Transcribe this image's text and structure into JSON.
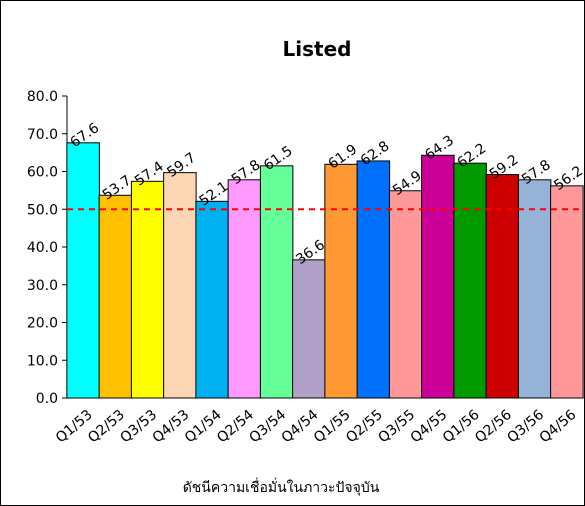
{
  "chart_data": {
    "type": "bar",
    "title": "Listed",
    "xlabel": "ดัชนีความเชื่อมั่นในภาวะปัจจุบัน",
    "ylabel": "",
    "ylim": [
      0,
      80
    ],
    "yticks": [
      "0.0",
      "10.0",
      "20.0",
      "30.0",
      "40.0",
      "50.0",
      "60.0",
      "70.0",
      "80.0"
    ],
    "categories": [
      "Q1/53",
      "Q2/53",
      "Q3/53",
      "Q4/53",
      "Q1/54",
      "Q2/54",
      "Q3/54",
      "Q4/54",
      "Q1/55",
      "Q2/55",
      "Q3/55",
      "Q4/55",
      "Q1/56",
      "Q2/56",
      "Q3/56",
      "Q4/56"
    ],
    "values": [
      67.6,
      53.7,
      57.4,
      59.7,
      52.1,
      57.8,
      61.5,
      36.6,
      61.9,
      62.8,
      54.9,
      64.3,
      62.2,
      59.2,
      57.8,
      56.2
    ],
    "labels": [
      "67.6",
      "53.7",
      "57.4",
      "59.7",
      "52.1",
      "57.8",
      "61.5",
      "36.6",
      "61.9",
      "62.8",
      "54.9",
      "64.3",
      "62.2",
      "59.2",
      "57.8",
      "56.2"
    ],
    "colors": [
      "#00FFFF",
      "#FFC000",
      "#FFFF00",
      "#FCD5B5",
      "#00B0F0",
      "#FF99FF",
      "#66FF99",
      "#B1A0C7",
      "#FF9933",
      "#0070FF",
      "#FF9999",
      "#CC0099",
      "#009900",
      "#CC0000",
      "#95B3D7",
      "#FF9999"
    ],
    "reference_line": {
      "value": 50,
      "color": "#FF0000",
      "style": "dashed"
    },
    "grid": false,
    "legend": "none"
  }
}
